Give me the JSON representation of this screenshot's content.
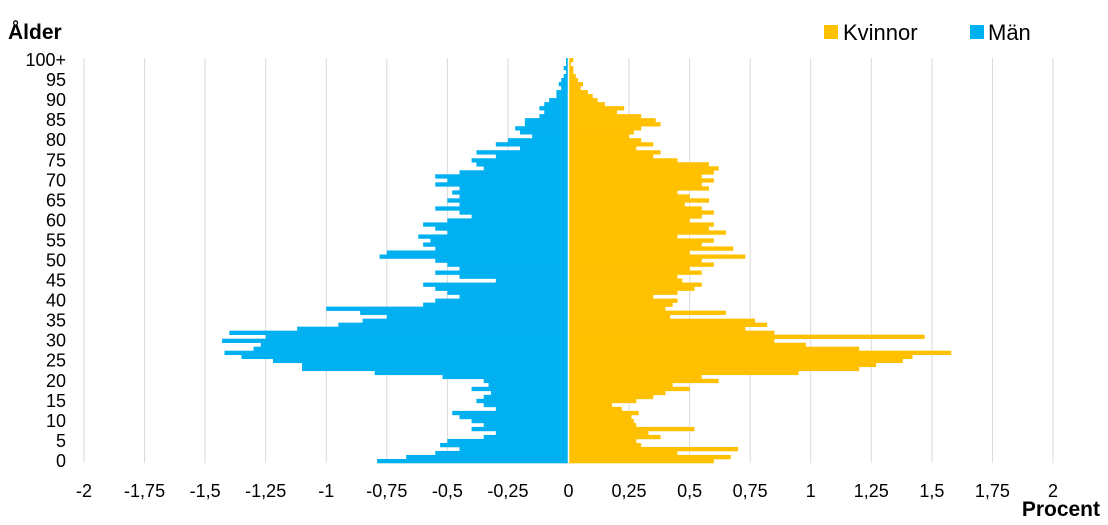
{
  "chart_data": {
    "type": "bar",
    "orientation": "horizontal",
    "title": "",
    "ylabel": "Ålder",
    "xlabel": "Procent",
    "y_tick_labels": [
      "100+",
      "95",
      "90",
      "85",
      "80",
      "75",
      "70",
      "65",
      "60",
      "55",
      "50",
      "45",
      "40",
      "35",
      "30",
      "25",
      "20",
      "15",
      "10",
      "5",
      "0"
    ],
    "x_tick_labels": [
      "-2",
      "-1,75",
      "-1,5",
      "-1,25",
      "-1",
      "-0,75",
      "-0,5",
      "-0,25",
      "0",
      "0,25",
      "0,5",
      "0,75",
      "1",
      "1,25",
      "1,5",
      "1,75",
      "2"
    ],
    "xlim": [
      -2,
      2
    ],
    "ages": [
      0,
      1,
      2,
      3,
      4,
      5,
      6,
      7,
      8,
      9,
      10,
      11,
      12,
      13,
      14,
      15,
      16,
      17,
      18,
      19,
      20,
      21,
      22,
      23,
      24,
      25,
      26,
      27,
      28,
      29,
      30,
      31,
      32,
      33,
      34,
      35,
      36,
      37,
      38,
      39,
      40,
      41,
      42,
      43,
      44,
      45,
      46,
      47,
      48,
      49,
      50,
      51,
      52,
      53,
      54,
      55,
      56,
      57,
      58,
      59,
      60,
      61,
      62,
      63,
      64,
      65,
      66,
      67,
      68,
      69,
      70,
      71,
      72,
      73,
      74,
      75,
      76,
      77,
      78,
      79,
      80,
      81,
      82,
      83,
      84,
      85,
      86,
      87,
      88,
      89,
      90,
      91,
      92,
      93,
      94,
      95,
      96,
      97,
      98,
      99,
      100
    ],
    "grid": true,
    "legend_position": "top-right",
    "series": [
      {
        "name": "Kvinnor",
        "color": "#FFC000",
        "values": [
          0.6,
          0.67,
          0.45,
          0.7,
          0.3,
          0.28,
          0.38,
          0.33,
          0.52,
          0.28,
          0.27,
          0.26,
          0.29,
          0.22,
          0.18,
          0.28,
          0.35,
          0.4,
          0.5,
          0.43,
          0.62,
          0.55,
          0.95,
          1.2,
          1.27,
          1.38,
          1.42,
          1.58,
          1.2,
          0.98,
          0.85,
          1.47,
          0.85,
          0.73,
          0.82,
          0.77,
          0.42,
          0.65,
          0.4,
          0.43,
          0.45,
          0.35,
          0.45,
          0.52,
          0.55,
          0.47,
          0.45,
          0.55,
          0.5,
          0.6,
          0.55,
          0.73,
          0.5,
          0.68,
          0.55,
          0.6,
          0.45,
          0.65,
          0.58,
          0.6,
          0.5,
          0.55,
          0.6,
          0.55,
          0.48,
          0.58,
          0.5,
          0.45,
          0.58,
          0.55,
          0.6,
          0.55,
          0.6,
          0.62,
          0.58,
          0.45,
          0.35,
          0.38,
          0.28,
          0.35,
          0.3,
          0.25,
          0.27,
          0.3,
          0.38,
          0.36,
          0.3,
          0.2,
          0.23,
          0.15,
          0.12,
          0.1,
          0.08,
          0.05,
          0.06,
          0.04,
          0.03,
          0.02,
          0.02,
          0.01,
          0.02
        ]
      },
      {
        "name": "Män",
        "color": "#00B0F0",
        "values": [
          0.79,
          0.67,
          0.55,
          0.45,
          0.53,
          0.5,
          0.35,
          0.3,
          0.4,
          0.35,
          0.4,
          0.45,
          0.48,
          0.3,
          0.35,
          0.38,
          0.35,
          0.32,
          0.4,
          0.33,
          0.35,
          0.52,
          0.8,
          1.1,
          1.1,
          1.22,
          1.35,
          1.42,
          1.3,
          1.27,
          1.43,
          1.25,
          1.4,
          1.12,
          0.95,
          0.85,
          0.75,
          0.86,
          1.0,
          0.6,
          0.55,
          0.45,
          0.5,
          0.55,
          0.6,
          0.3,
          0.45,
          0.55,
          0.45,
          0.5,
          0.55,
          0.78,
          0.75,
          0.55,
          0.6,
          0.57,
          0.62,
          0.5,
          0.55,
          0.6,
          0.5,
          0.4,
          0.45,
          0.55,
          0.45,
          0.5,
          0.45,
          0.48,
          0.45,
          0.55,
          0.5,
          0.55,
          0.45,
          0.35,
          0.38,
          0.4,
          0.3,
          0.38,
          0.2,
          0.3,
          0.25,
          0.15,
          0.2,
          0.22,
          0.18,
          0.18,
          0.12,
          0.1,
          0.12,
          0.1,
          0.08,
          0.05,
          0.05,
          0.03,
          0.04,
          0.03,
          0.02,
          0.01,
          0.02,
          0.01,
          0.01
        ]
      }
    ]
  }
}
